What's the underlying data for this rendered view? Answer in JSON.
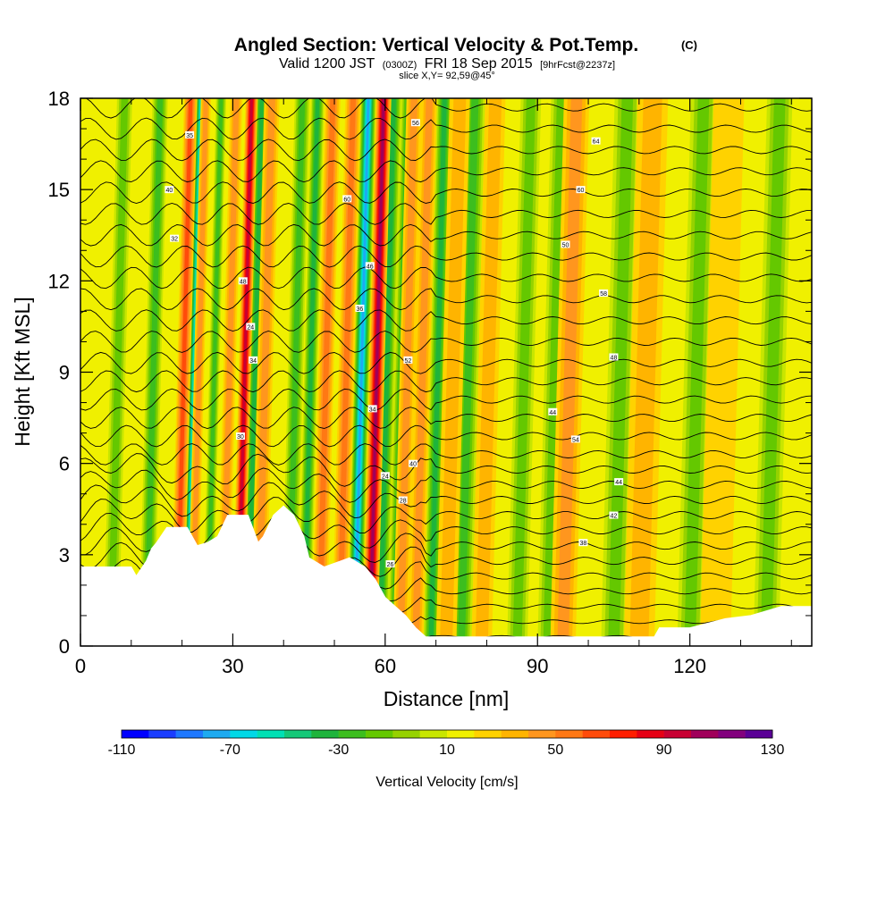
{
  "header": {
    "title": "Angled Section: Vertical Velocity & Pot.Temp.",
    "title_unit": "(C)",
    "valid_main1": "Valid 1200 JST",
    "valid_utc": "(0300Z)",
    "valid_main2": "FRI 18 Sep 2015",
    "forecast": "[9hrFcst@2237z]",
    "slice": "slice X,Y= 92,59@45°"
  },
  "chart_data": {
    "type": "heatmap",
    "xlabel": "Distance [nm]",
    "ylabel": "Height [Kft MSL]",
    "xlim": [
      0,
      144
    ],
    "ylim": [
      0,
      18
    ],
    "x_ticks": [
      0,
      30,
      60,
      90,
      120
    ],
    "y_ticks": [
      0,
      3,
      6,
      9,
      12,
      15,
      18
    ],
    "colorbar": {
      "label": "Vertical Velocity [cm/s]",
      "min": -110,
      "max": 130,
      "step": 10,
      "tick_values": [
        -110,
        -70,
        -30,
        10,
        50,
        90,
        130
      ],
      "colors": [
        "#0000ff",
        "#1a3dff",
        "#1e78ff",
        "#1eaaf0",
        "#00d8e6",
        "#00e0b4",
        "#14c878",
        "#1eb43c",
        "#3cbe1e",
        "#64c800",
        "#96d200",
        "#c8e600",
        "#f0f000",
        "#ffd200",
        "#ffb400",
        "#ff961e",
        "#ff7814",
        "#ff4b0a",
        "#ff1e00",
        "#e60014",
        "#c80032",
        "#a0005a",
        "#82007d",
        "#5a0096"
      ]
    },
    "background_wv": 10,
    "updrafts": [
      {
        "x": 19,
        "wv": 60,
        "width": 1.3
      },
      {
        "x": 22,
        "wv": 40,
        "width": 1.0
      },
      {
        "x": 28,
        "wv": 40,
        "width": 1.2
      },
      {
        "x": 31,
        "wv": 90,
        "width": 1.2
      },
      {
        "x": 35,
        "wv": 40,
        "width": 1.5
      },
      {
        "x": 47,
        "wv": 50,
        "width": 1.5
      },
      {
        "x": 51,
        "wv": 50,
        "width": 1.5
      },
      {
        "x": 57,
        "wv": 100,
        "width": 1.5
      },
      {
        "x": 63,
        "wv": 40,
        "width": 1.5
      },
      {
        "x": 66,
        "wv": 40,
        "width": 1.5
      },
      {
        "x": 72,
        "wv": 30,
        "width": 2.0
      },
      {
        "x": 79,
        "wv": 30,
        "width": 2.0
      },
      {
        "x": 95,
        "wv": 40,
        "width": 2.5
      },
      {
        "x": 110,
        "wv": 30,
        "width": 3.0
      },
      {
        "x": 125,
        "wv": 20,
        "width": 3.0
      }
    ],
    "downdrafts": [
      {
        "x": 6,
        "wv": -20,
        "width": 1.5
      },
      {
        "x": 13,
        "wv": -30,
        "width": 1.5
      },
      {
        "x": 21,
        "wv": -60,
        "width": 1.2
      },
      {
        "x": 25,
        "wv": -30,
        "width": 1.0
      },
      {
        "x": 33,
        "wv": -40,
        "width": 1.3
      },
      {
        "x": 41,
        "wv": -30,
        "width": 1.5
      },
      {
        "x": 44,
        "wv": -40,
        "width": 1.3
      },
      {
        "x": 54,
        "wv": -80,
        "width": 1.5
      },
      {
        "x": 59,
        "wv": -40,
        "width": 1.5
      },
      {
        "x": 62,
        "wv": -40,
        "width": 1.5
      },
      {
        "x": 69,
        "wv": -40,
        "width": 1.5
      },
      {
        "x": 75,
        "wv": -30,
        "width": 2.0
      },
      {
        "x": 86,
        "wv": -20,
        "width": 2.0
      },
      {
        "x": 92,
        "wv": -20,
        "width": 2.0
      },
      {
        "x": 105,
        "wv": -20,
        "width": 2.5
      },
      {
        "x": 120,
        "wv": -20,
        "width": 2.5
      },
      {
        "x": 135,
        "wv": -20,
        "width": 2.5
      }
    ],
    "terrain": [
      [
        0,
        2.6
      ],
      [
        10,
        2.6
      ],
      [
        11,
        2.3
      ],
      [
        13,
        2.8
      ],
      [
        14,
        3.2
      ],
      [
        15,
        3.4
      ],
      [
        17,
        3.9
      ],
      [
        21,
        3.9
      ],
      [
        22,
        3.6
      ],
      [
        23,
        3.3
      ],
      [
        25,
        3.4
      ],
      [
        27,
        3.6
      ],
      [
        29,
        4.3
      ],
      [
        33,
        4.3
      ],
      [
        35,
        3.4
      ],
      [
        36,
        3.6
      ],
      [
        38,
        4.3
      ],
      [
        40,
        4.6
      ],
      [
        42,
        4.3
      ],
      [
        44,
        3.6
      ],
      [
        45,
        2.9
      ],
      [
        48,
        2.6
      ],
      [
        53,
        2.9
      ],
      [
        56,
        2.6
      ],
      [
        58,
        2.2
      ],
      [
        60,
        1.6
      ],
      [
        62,
        1.3
      ],
      [
        64,
        1.0
      ],
      [
        66,
        0.6
      ],
      [
        68,
        0.3
      ],
      [
        113,
        0.3
      ],
      [
        114,
        0.6
      ],
      [
        120,
        0.6
      ],
      [
        127,
        0.9
      ],
      [
        132,
        1.0
      ],
      [
        138,
        1.3
      ],
      [
        144,
        1.3
      ]
    ],
    "isentrope_base": [
      0.3,
      0.8,
      1.3,
      1.8,
      2.3,
      2.8,
      3.3,
      3.8,
      4.3,
      4.8,
      5.3,
      5.8,
      6.3,
      6.9,
      7.5,
      8.1,
      8.7,
      9.3,
      10.0,
      10.7,
      11.4,
      12.1,
      12.8,
      13.5,
      14.2,
      14.9,
      15.6,
      16.3,
      17.0,
      17.7
    ],
    "isentrope_labels": [
      {
        "x": 18.5,
        "y": 13.4,
        "text": "32"
      },
      {
        "x": 21.5,
        "y": 16.8,
        "text": "35"
      },
      {
        "x": 17.5,
        "y": 15.0,
        "text": "40"
      },
      {
        "x": 32.0,
        "y": 12.0,
        "text": "48"
      },
      {
        "x": 33.5,
        "y": 10.5,
        "text": "24"
      },
      {
        "x": 34.0,
        "y": 9.4,
        "text": "34"
      },
      {
        "x": 31.5,
        "y": 6.9,
        "text": "30"
      },
      {
        "x": 52.5,
        "y": 14.7,
        "text": "60"
      },
      {
        "x": 57.0,
        "y": 12.5,
        "text": "46"
      },
      {
        "x": 55.0,
        "y": 11.1,
        "text": "36"
      },
      {
        "x": 57.5,
        "y": 7.8,
        "text": "34"
      },
      {
        "x": 60.0,
        "y": 5.6,
        "text": "24"
      },
      {
        "x": 63.5,
        "y": 4.8,
        "text": "28"
      },
      {
        "x": 61.0,
        "y": 2.7,
        "text": "26"
      },
      {
        "x": 66.0,
        "y": 17.2,
        "text": "56"
      },
      {
        "x": 64.5,
        "y": 9.4,
        "text": "52"
      },
      {
        "x": 65.5,
        "y": 6.0,
        "text": "40"
      },
      {
        "x": 101.5,
        "y": 16.6,
        "text": "64"
      },
      {
        "x": 98.5,
        "y": 15.0,
        "text": "60"
      },
      {
        "x": 95.5,
        "y": 13.2,
        "text": "50"
      },
      {
        "x": 103.0,
        "y": 11.6,
        "text": "58"
      },
      {
        "x": 105.0,
        "y": 9.5,
        "text": "48"
      },
      {
        "x": 93.0,
        "y": 7.7,
        "text": "44"
      },
      {
        "x": 97.5,
        "y": 6.8,
        "text": "54"
      },
      {
        "x": 106.0,
        "y": 5.4,
        "text": "44"
      },
      {
        "x": 105.0,
        "y": 4.3,
        "text": "42"
      },
      {
        "x": 99.0,
        "y": 3.4,
        "text": "38"
      }
    ]
  }
}
